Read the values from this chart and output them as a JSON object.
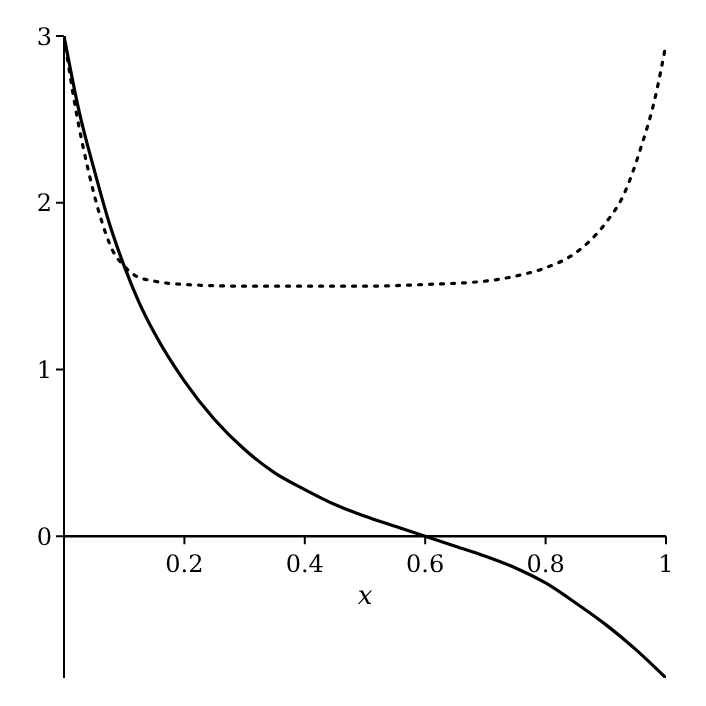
{
  "chart_data": {
    "type": "line",
    "xlabel": "x",
    "xlim": [
      0,
      1
    ],
    "ylim": [
      -0.85,
      3
    ],
    "xticks": [
      0.2,
      0.4,
      0.6,
      0.8,
      1
    ],
    "yticks": [
      0,
      1,
      2,
      3
    ],
    "marker": "none",
    "series": [
      {
        "color": "#000000",
        "line_style": "solid",
        "x": [
          0,
          0.025,
          0.05,
          0.075,
          0.1,
          0.125,
          0.15,
          0.2,
          0.25,
          0.3,
          0.35,
          0.4,
          0.45,
          0.5,
          0.55,
          0.6,
          0.65,
          0.7,
          0.75,
          0.8,
          0.85,
          0.9,
          0.95,
          1
        ],
        "values": [
          3,
          2.55,
          2.2,
          1.88,
          1.62,
          1.4,
          1.22,
          0.93,
          0.7,
          0.52,
          0.38,
          0.28,
          0.19,
          0.12,
          0.06,
          0,
          -0.06,
          -0.12,
          -0.19,
          -0.28,
          -0.4,
          -0.53,
          -0.68,
          -0.85
        ]
      },
      {
        "color": "#000000",
        "line_style": "dotted",
        "x": [
          0,
          0.02,
          0.04,
          0.06,
          0.08,
          0.1,
          0.12,
          0.15,
          0.2,
          0.3,
          0.4,
          0.5,
          0.6,
          0.7,
          0.75,
          0.8,
          0.85,
          0.9,
          0.93,
          0.96,
          0.98,
          1
        ],
        "values": [
          3,
          2.55,
          2.2,
          1.92,
          1.72,
          1.62,
          1.56,
          1.53,
          1.51,
          1.5,
          1.5,
          1.5,
          1.51,
          1.53,
          1.56,
          1.61,
          1.7,
          1.88,
          2.05,
          2.35,
          2.6,
          2.95
        ]
      }
    ]
  }
}
